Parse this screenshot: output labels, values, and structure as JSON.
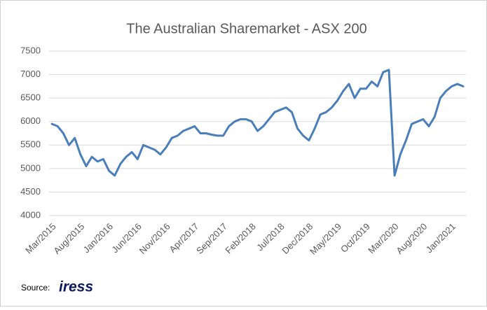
{
  "chart_data": {
    "type": "line",
    "title": "The Australian Sharemarket - ASX 200",
    "categories": [
      "Mar/2015",
      null,
      null,
      null,
      null,
      "Aug/2015",
      null,
      null,
      null,
      null,
      "Jan/2016",
      null,
      null,
      null,
      null,
      "Jun/2016",
      null,
      null,
      null,
      null,
      "Nov/2016",
      null,
      null,
      null,
      null,
      "Apr/2017",
      null,
      null,
      null,
      null,
      "Sep/2017",
      null,
      null,
      null,
      null,
      "Feb/2018",
      null,
      null,
      null,
      null,
      "Jul/2018",
      null,
      null,
      null,
      null,
      "Dec/2018",
      null,
      null,
      null,
      null,
      "May/2019",
      null,
      null,
      null,
      null,
      "Oct/2019",
      null,
      null,
      null,
      null,
      "Mar/2020",
      null,
      null,
      null,
      null,
      "Aug/2020",
      null,
      null,
      null,
      null,
      "Jan/2021",
      null,
      null
    ],
    "values": [
      5950,
      5900,
      5750,
      5500,
      5650,
      5300,
      5050,
      5250,
      5150,
      5200,
      4950,
      4850,
      5100,
      5250,
      5350,
      5200,
      5500,
      5450,
      5400,
      5300,
      5450,
      5650,
      5700,
      5800,
      5850,
      5900,
      5750,
      5750,
      5720,
      5700,
      5700,
      5900,
      6000,
      6050,
      6050,
      6000,
      5800,
      5900,
      6050,
      6200,
      6250,
      6300,
      6200,
      5850,
      5700,
      5600,
      5850,
      6150,
      6200,
      6300,
      6450,
      6650,
      6800,
      6500,
      6700,
      6700,
      6850,
      6750,
      7050,
      7100,
      4850,
      5300,
      5600,
      5950,
      6000,
      6050,
      5900,
      6100,
      6500,
      6650,
      6750,
      6800,
      6750
    ],
    "color": "#4a7ebb",
    "ylim": [
      4000,
      7500
    ],
    "yticks": [
      4000,
      4500,
      5000,
      5500,
      6000,
      6500,
      7000,
      7500
    ],
    "grid": true,
    "source_label": "Source:",
    "source_name": "iress"
  }
}
